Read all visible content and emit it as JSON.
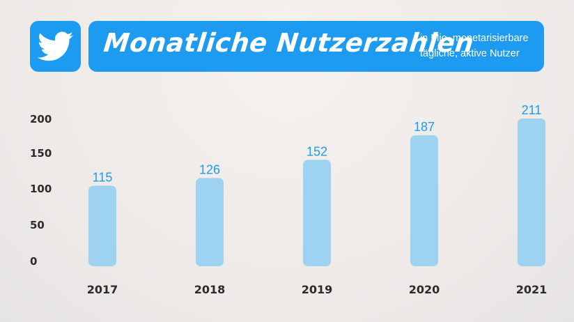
{
  "header": {
    "title": "Monatliche Nutzerzahlen",
    "subtitle_line1": "in Mio. monetarisierbare",
    "subtitle_line2": "tägliche, aktive Nutzer",
    "logo_icon": "twitter-bird-icon"
  },
  "colors": {
    "brand": "#1d9bf0",
    "bar": "#9dd2f1",
    "label": "#1d9bf0",
    "axis_text": "#2b2b2b"
  },
  "chart_data": {
    "type": "bar",
    "categories": [
      "2017",
      "2018",
      "2019",
      "2020",
      "2021"
    ],
    "values": [
      115,
      126,
      152,
      187,
      211
    ],
    "data_labels": [
      "115",
      "126",
      "152",
      "187",
      "211"
    ],
    "yticks": [
      "0",
      "50",
      "100",
      "150",
      "200"
    ],
    "ylim": [
      0,
      211
    ],
    "grid": false,
    "legend": "none"
  }
}
